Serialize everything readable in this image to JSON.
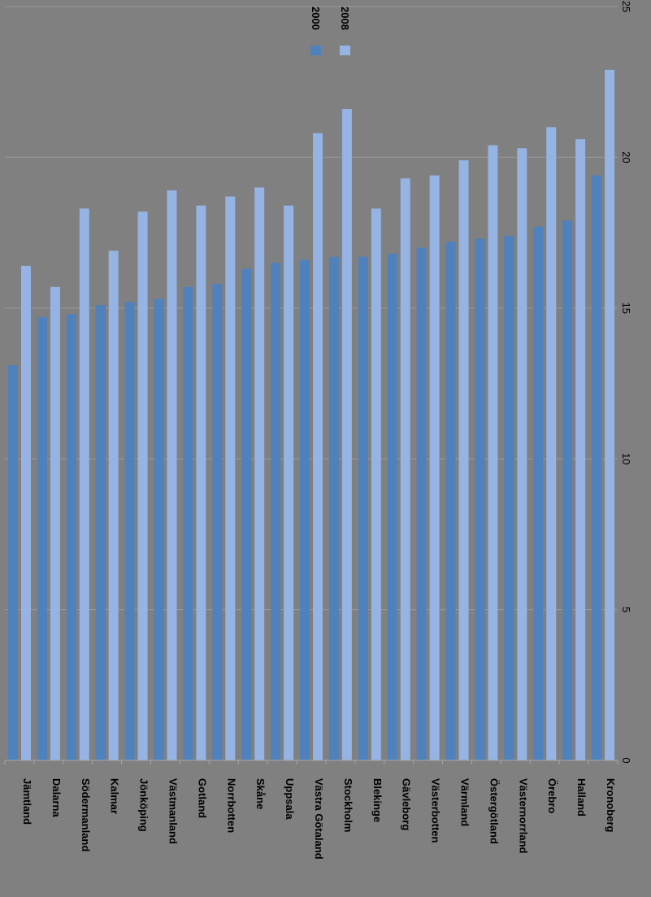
{
  "chart_data": {
    "type": "bar",
    "orientation": "rotated-90-clockwise",
    "categories": [
      "Jämtland",
      "Dalarna",
      "Södermanland",
      "Kalmar",
      "Jönköping",
      "Västmanland",
      "Gotland",
      "Norrbotten",
      "Skåne",
      "Uppsala",
      "Västra Götaland",
      "Stockholm",
      "Blekinge",
      "Gävleborg",
      "Västerbotten",
      "Värmland",
      "Östergötland",
      "Västernorrland",
      "Örebro",
      "Halland",
      "Kronoberg"
    ],
    "series": [
      {
        "name": "2000",
        "color": "#4f81bd",
        "values": [
          13.1,
          14.7,
          14.8,
          15.1,
          15.2,
          15.3,
          15.7,
          15.8,
          16.3,
          16.5,
          16.6,
          16.7,
          16.7,
          16.8,
          17.0,
          17.2,
          17.3,
          17.4,
          17.7,
          17.9,
          19.4
        ]
      },
      {
        "name": "2008",
        "color": "#95b3e3",
        "values": [
          16.4,
          15.7,
          18.3,
          16.9,
          18.2,
          18.9,
          18.4,
          18.7,
          19.0,
          18.4,
          20.8,
          21.6,
          18.3,
          19.3,
          19.4,
          19.9,
          20.4,
          20.3,
          21.0,
          20.6,
          22.9
        ]
      }
    ],
    "ylim": [
      0,
      25
    ],
    "yticks": [
      "0",
      "5",
      "10",
      "15",
      "20",
      "25"
    ],
    "grid": true,
    "legend": "top-right",
    "background": "#808080",
    "gridline_color": "#9a9a9a",
    "axis_color": "#a6a6a6",
    "label_color": "#000000"
  }
}
